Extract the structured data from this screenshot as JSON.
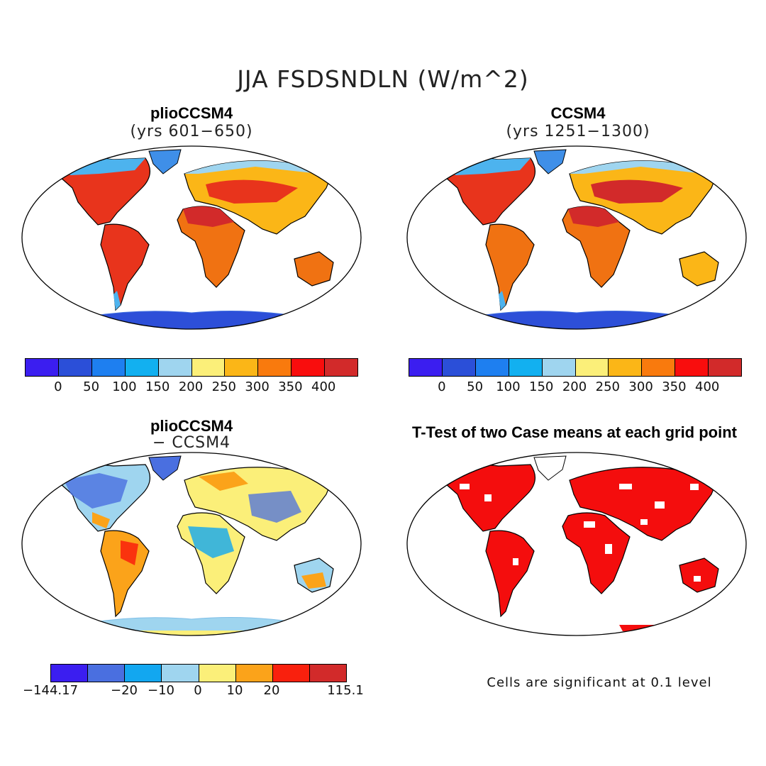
{
  "title": "JJA FSDSNDLN (W/m^2)",
  "panels": {
    "top_left": {
      "title": "plioCCSM4",
      "subtitle": "(yrs 601-650)"
    },
    "top_right": {
      "title": "CCSM4",
      "subtitle": "(yrs 1251-1300)"
    },
    "bottom_left": {
      "title": "plioCCSM4",
      "subtitle": "- CCSM4"
    },
    "bottom_right": {
      "title": "T-Test of two Case means at each grid point"
    }
  },
  "colorbar_top": {
    "colors": [
      "#3b1ef0",
      "#2b4fd8",
      "#1e7ff0",
      "#12b0f0",
      "#9fd5ef",
      "#fbef79",
      "#fbb617",
      "#f97a0d",
      "#f90d0d",
      "#d22a2a"
    ],
    "ticks": [
      "0",
      "50",
      "100",
      "150",
      "200",
      "250",
      "300",
      "350",
      "400"
    ]
  },
  "colorbar_diff": {
    "colors": [
      "#3b1ef0",
      "#4a6fe0",
      "#12a7f0",
      "#9fd5ef",
      "#fbef79",
      "#fba31a",
      "#f9200d",
      "#d22a2a"
    ],
    "ticks": [
      "-144.17",
      "-20",
      "-10",
      "0",
      "10",
      "20",
      "115.1"
    ]
  },
  "significance_note": "Cells are significant at 0.1 level"
}
